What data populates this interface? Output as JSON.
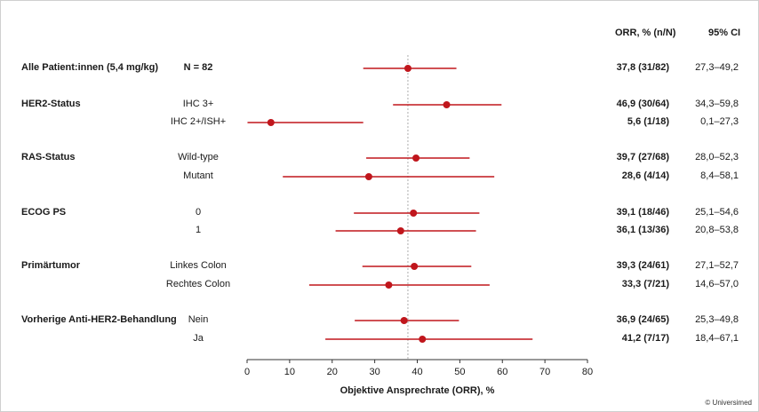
{
  "header": {
    "orr_col": "ORR, % (n/N)",
    "ci_col": "95% CI"
  },
  "copyright": "© Universimed",
  "chart_data": {
    "type": "forest",
    "xlabel": "Objektive Ansprechrate (ORR), %",
    "xlim": [
      0,
      80
    ],
    "xticks": [
      0,
      10,
      20,
      30,
      40,
      50,
      60,
      70,
      80
    ],
    "reference_line": 37.8,
    "colors": {
      "marker": "#c0161c",
      "reference": "#999999",
      "axis": "#333333"
    },
    "rows": [
      {
        "group": "Alle Patient:innen (5,4 mg/kg)",
        "subgroup": "N = 82",
        "subgroup_bold": true,
        "orr": 37.8,
        "low": 27.3,
        "high": 49.2,
        "orr_text": "37,8 (31/82)",
        "ci_text": "27,3–49,2"
      },
      {
        "group": "HER2-Status",
        "subgroup": "IHC 3+",
        "orr": 46.9,
        "low": 34.3,
        "high": 59.8,
        "orr_text": "46,9 (30/64)",
        "ci_text": "34,3–59,8"
      },
      {
        "group": "",
        "subgroup": "IHC 2+/ISH+",
        "orr": 5.6,
        "low": 0.1,
        "high": 27.3,
        "orr_text": "5,6 (1/18)",
        "ci_text": "0,1–27,3"
      },
      {
        "group": "RAS-Status",
        "subgroup": "Wild-type",
        "orr": 39.7,
        "low": 28.0,
        "high": 52.3,
        "orr_text": "39,7 (27/68)",
        "ci_text": "28,0–52,3"
      },
      {
        "group": "",
        "subgroup": "Mutant",
        "orr": 28.6,
        "low": 8.4,
        "high": 58.1,
        "orr_text": "28,6 (4/14)",
        "ci_text": "8,4–58,1"
      },
      {
        "group": "ECOG PS",
        "subgroup": "0",
        "orr": 39.1,
        "low": 25.1,
        "high": 54.6,
        "orr_text": "39,1 (18/46)",
        "ci_text": "25,1–54,6"
      },
      {
        "group": "",
        "subgroup": "1",
        "orr": 36.1,
        "low": 20.8,
        "high": 53.8,
        "orr_text": "36,1 (13/36)",
        "ci_text": "20,8–53,8"
      },
      {
        "group": "Primärtumor",
        "subgroup": "Linkes Colon",
        "orr": 39.3,
        "low": 27.1,
        "high": 52.7,
        "orr_text": "39,3 (24/61)",
        "ci_text": "27,1–52,7"
      },
      {
        "group": "",
        "subgroup": "Rechtes Colon",
        "orr": 33.3,
        "low": 14.6,
        "high": 57.0,
        "orr_text": "33,3 (7/21)",
        "ci_text": "14,6–57,0"
      },
      {
        "group": "Vorherige Anti-HER2-Behandlung",
        "subgroup": "Nein",
        "orr": 36.9,
        "low": 25.3,
        "high": 49.8,
        "orr_text": "36,9 (24/65)",
        "ci_text": "25,3–49,8"
      },
      {
        "group": "",
        "subgroup": "Ja",
        "orr": 41.2,
        "low": 18.4,
        "high": 67.1,
        "orr_text": "41,2 (7/17)",
        "ci_text": "18,4–67,1"
      }
    ]
  }
}
